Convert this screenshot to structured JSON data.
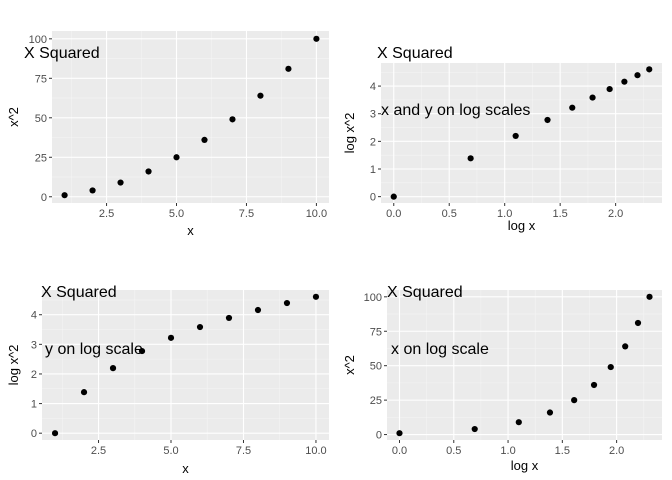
{
  "chart_data": [
    {
      "type": "scatter",
      "title": "X Squared",
      "subtitle": "",
      "xlabel": "x",
      "ylabel": "x^2",
      "x": [
        1,
        2,
        3,
        4,
        5,
        6,
        7,
        8,
        9,
        10
      ],
      "y": [
        1,
        4,
        9,
        16,
        25,
        36,
        49,
        64,
        81,
        100
      ],
      "xlim": [
        0.55,
        10.45
      ],
      "ylim": [
        -3.95,
        104.95
      ],
      "xticks": [
        2.5,
        5.0,
        7.5,
        10.0
      ],
      "xtick_labels": [
        "2.5",
        "5.0",
        "7.5",
        "10.0"
      ],
      "yticks": [
        0,
        25,
        50,
        75,
        100
      ],
      "ytick_labels": [
        "0",
        "25",
        "50",
        "75",
        "100"
      ],
      "grid": true
    },
    {
      "type": "scatter",
      "title": "X Squared",
      "subtitle": "x and y on log scales",
      "xlabel": "log x",
      "ylabel": "log x^2",
      "x": [
        0,
        0.693,
        1.099,
        1.386,
        1.609,
        1.792,
        1.946,
        2.079,
        2.197,
        2.303
      ],
      "y": [
        0,
        1.386,
        2.197,
        2.773,
        3.219,
        3.584,
        3.892,
        4.159,
        4.394,
        4.605
      ],
      "xlim": [
        -0.115,
        2.418
      ],
      "ylim": [
        -0.23,
        4.835
      ],
      "xticks": [
        0.0,
        0.5,
        1.0,
        1.5,
        2.0
      ],
      "xtick_labels": [
        "0.0",
        "0.5",
        "1.0",
        "1.5",
        "2.0"
      ],
      "yticks": [
        0,
        1,
        2,
        3,
        4
      ],
      "ytick_labels": [
        "0",
        "1",
        "2",
        "3",
        "4"
      ],
      "grid": true
    },
    {
      "type": "scatter",
      "title": "X Squared",
      "subtitle": "y on log scale",
      "xlabel": "x",
      "ylabel": "log x^2",
      "x": [
        1,
        2,
        3,
        4,
        5,
        6,
        7,
        8,
        9,
        10
      ],
      "y": [
        0,
        1.386,
        2.197,
        2.773,
        3.219,
        3.584,
        3.892,
        4.159,
        4.394,
        4.605
      ],
      "xlim": [
        0.55,
        10.45
      ],
      "ylim": [
        -0.23,
        4.835
      ],
      "xticks": [
        2.5,
        5.0,
        7.5,
        10.0
      ],
      "xtick_labels": [
        "2.5",
        "5.0",
        "7.5",
        "10.0"
      ],
      "yticks": [
        0,
        1,
        2,
        3,
        4
      ],
      "ytick_labels": [
        "0",
        "1",
        "2",
        "3",
        "4"
      ],
      "grid": true
    },
    {
      "type": "scatter",
      "title": "X Squared",
      "subtitle": "x on log scale",
      "xlabel": "log x",
      "ylabel": "x^2",
      "x": [
        0,
        0.693,
        1.099,
        1.386,
        1.609,
        1.792,
        1.946,
        2.079,
        2.197,
        2.303
      ],
      "y": [
        1,
        4,
        9,
        16,
        25,
        36,
        49,
        64,
        81,
        100
      ],
      "xlim": [
        -0.115,
        2.418
      ],
      "ylim": [
        -3.95,
        104.95
      ],
      "xticks": [
        0.0,
        0.5,
        1.0,
        1.5,
        2.0
      ],
      "xtick_labels": [
        "0.0",
        "0.5",
        "1.0",
        "1.5",
        "2.0"
      ],
      "yticks": [
        0,
        25,
        50,
        75,
        100
      ],
      "ytick_labels": [
        "0",
        "25",
        "50",
        "75",
        "100"
      ],
      "grid": true
    }
  ]
}
